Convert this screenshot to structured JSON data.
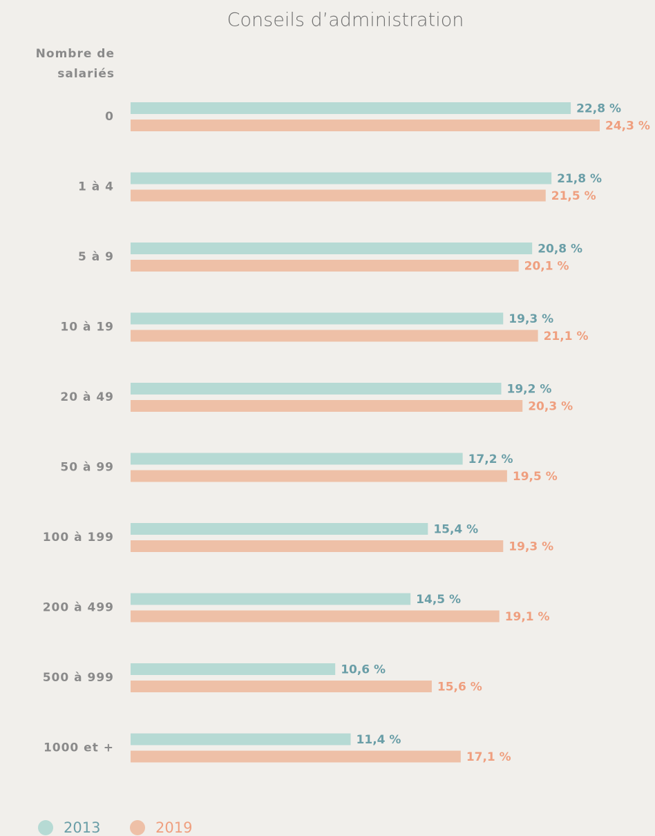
{
  "chart_data": {
    "type": "hbar",
    "title": "Conseils d’administration",
    "y_label": "Nombre de salariés",
    "categories": [
      "0",
      "1 à 4",
      "5 à 9",
      "10 à 19",
      "20 à 49",
      "50 à 99",
      "100 à 199",
      "200 à 499",
      "500 à 999",
      "1000 et +"
    ],
    "series": [
      {
        "name": "2013",
        "color": "#b6dad4",
        "label_color": "#6a9ea7",
        "values": [
          22.8,
          21.8,
          20.8,
          19.3,
          19.2,
          17.2,
          15.4,
          14.5,
          10.6,
          11.4
        ],
        "value_labels": [
          "22,8 %",
          "21,8 %",
          "20,8 %",
          "19,3 %",
          "19,2 %",
          "17,2 %",
          "15,4 %",
          "14,5 %",
          "10,6 %",
          "11,4 %"
        ]
      },
      {
        "name": "2019",
        "color": "#eec0a7",
        "label_color": "#ef9f7f",
        "values": [
          24.3,
          21.5,
          20.1,
          21.1,
          20.3,
          19.5,
          19.3,
          19.1,
          15.6,
          17.1
        ],
        "value_labels": [
          "24,3 %",
          "21,5 %",
          "20,1 %",
          "21,1 %",
          "20,3 %",
          "19,5 %",
          "19,3 %",
          "19,1 %",
          "15,6 %",
          "17,1 %"
        ]
      }
    ],
    "legend": "bottom-left"
  }
}
